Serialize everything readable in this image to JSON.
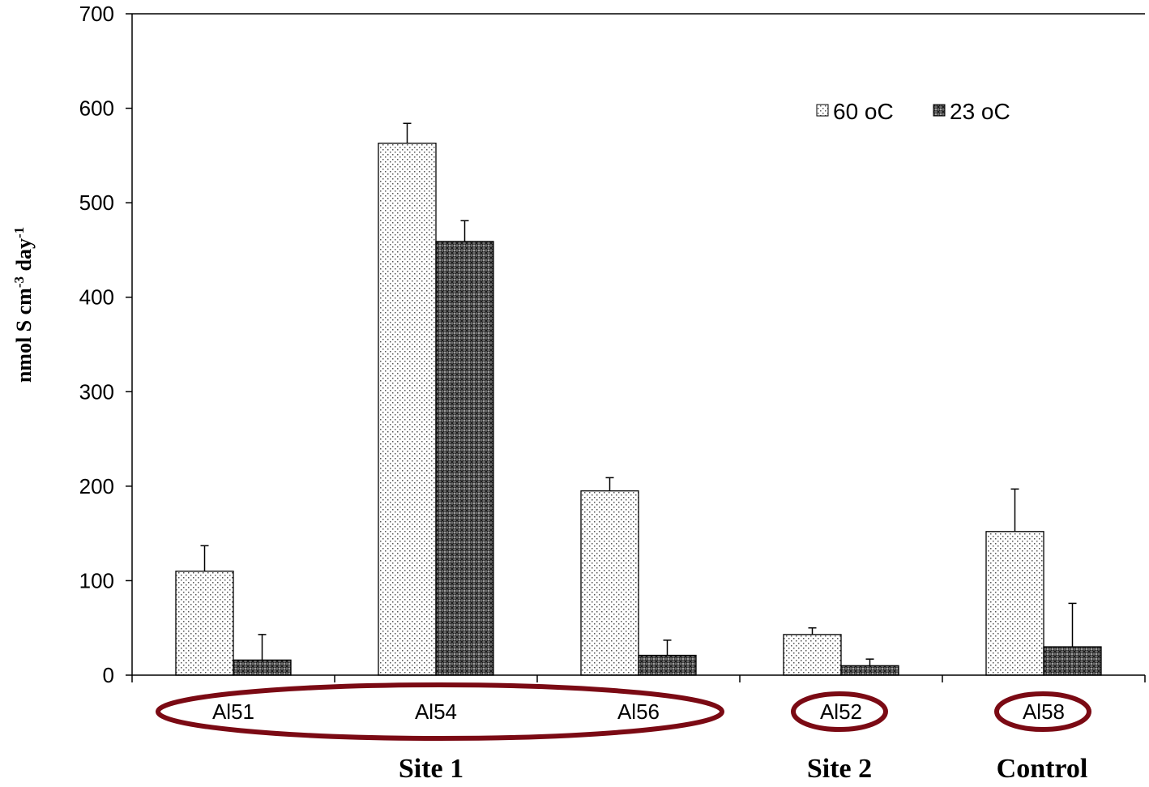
{
  "chart_data": {
    "type": "bar",
    "ylabel": {
      "main": "nmol S cm",
      "exp1": "-3",
      "mid": " day",
      "exp2": "-1"
    },
    "ylim": [
      0,
      700
    ],
    "yticks": [
      0,
      100,
      200,
      300,
      400,
      500,
      600,
      700
    ],
    "categories": [
      "Al51",
      "Al54",
      "Al56",
      "Al52",
      "Al58"
    ],
    "series": [
      {
        "name": "60 oC",
        "values": [
          110,
          563,
          195,
          43,
          152
        ],
        "errors": [
          27,
          21,
          14,
          7,
          45
        ],
        "pattern": "dots-light"
      },
      {
        "name": "23 oC",
        "values": [
          16,
          459,
          21,
          10,
          30
        ],
        "errors": [
          27,
          22,
          16,
          7,
          46
        ],
        "pattern": "crosshatch-dark"
      }
    ],
    "groups": [
      {
        "label": "Site 1",
        "categories": [
          "Al51",
          "Al54",
          "Al56"
        ]
      },
      {
        "label": "Site 2",
        "categories": [
          "Al52"
        ]
      },
      {
        "label": "Control",
        "categories": [
          "Al58"
        ]
      }
    ],
    "legend_position": "top-right",
    "grid": false,
    "highlight_color": "#7b0a14"
  }
}
